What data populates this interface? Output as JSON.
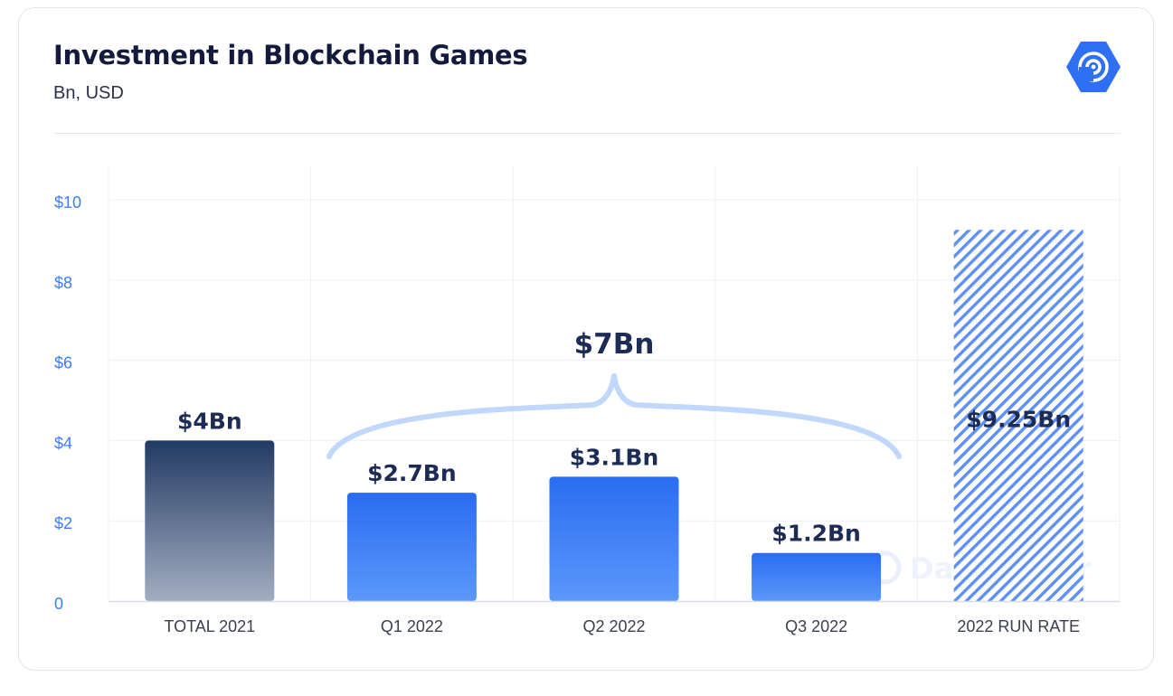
{
  "header": {
    "title": "Investment in Blockchain Games",
    "subtitle": "Bn, USD"
  },
  "logo": {
    "icon": "dappradar-logo-icon",
    "color": "#2f6ff3"
  },
  "watermark": "DappRadar",
  "colors": {
    "accent": "#3f7df4",
    "dark_bar_top": "#223a63",
    "dark_bar_bottom": "#a3adc1",
    "blue_bar_top": "#2a6cf0",
    "blue_bar_bottom": "#5b98fb",
    "hatch": "#5e8ff7",
    "brace": "#c1d7fb"
  },
  "chart_data": {
    "type": "bar",
    "title": "Investment in Blockchain Games",
    "subtitle": "Bn, USD",
    "categories": [
      "TOTAL 2021",
      "Q1 2022",
      "Q2 2022",
      "Q3 2022",
      "2022 RUN RATE"
    ],
    "values": [
      4,
      2.7,
      3.1,
      1.2,
      9.25
    ],
    "data_labels": [
      "$4Bn",
      "$2.7Bn",
      "$3.1Bn",
      "$1.2Bn",
      "$9.25Bn"
    ],
    "ylim": [
      0,
      10
    ],
    "yticks": [
      0,
      2,
      4,
      6,
      8,
      10
    ],
    "ytick_labels": [
      "0",
      "$2",
      "$4",
      "$6",
      "$8",
      "$10"
    ],
    "bar_styles": [
      "dark-gradient",
      "blue-gradient",
      "blue-gradient",
      "blue-gradient",
      "hatched"
    ],
    "annotation": {
      "text": "$7Bn",
      "spans": [
        "Q1 2022",
        "Q2 2022",
        "Q3 2022"
      ],
      "shape": "curly-brace"
    },
    "grid": true,
    "xlabel": "",
    "ylabel": ""
  }
}
